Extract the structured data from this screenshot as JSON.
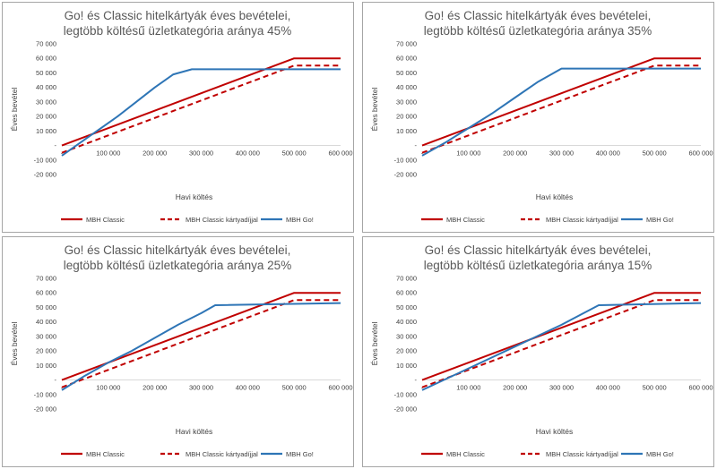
{
  "chart_data": [
    {
      "type": "line",
      "title_line1": "Go! és Classic hitelkártyák éves bevételei,",
      "title_line2": "legtöbb költésű üzletkategória aránya 45%",
      "xlabel": "Havi költés",
      "ylabel": "Éves bevétel",
      "xlim": [
        0,
        600000
      ],
      "ylim": [
        -20000,
        70000
      ],
      "xticks": [
        0,
        100000,
        200000,
        300000,
        400000,
        500000,
        600000
      ],
      "xtick_labels": [
        "-",
        "100 000",
        "200 000",
        "300 000",
        "400 000",
        "500 000",
        "600 000"
      ],
      "yticks": [
        -20000,
        -10000,
        0,
        10000,
        20000,
        30000,
        40000,
        50000,
        60000,
        70000
      ],
      "ytick_labels": [
        "-20 000",
        "-10 000",
        "-",
        "10 000",
        "20 000",
        "30 000",
        "40 000",
        "50 000",
        "60 000",
        "70 000"
      ],
      "legend_position": "bottom",
      "series": [
        {
          "name": "MBH Classic",
          "style": "solid",
          "color": "#c00000",
          "x": [
            0,
            500000,
            600000
          ],
          "y": [
            0,
            60000,
            60000
          ]
        },
        {
          "name": "MBH Classic kártyadíjjal",
          "style": "dashed",
          "color": "#c00000",
          "x": [
            0,
            500000,
            600000
          ],
          "y": [
            -5000,
            55000,
            55000
          ]
        },
        {
          "name": "MBH Go!",
          "style": "solid",
          "color": "#2e75b6",
          "x": [
            0,
            40000,
            80000,
            120000,
            160000,
            200000,
            240000,
            280000,
            600000
          ],
          "y": [
            -7000,
            2000,
            11000,
            20000,
            30000,
            40000,
            49000,
            52500,
            52500
          ]
        }
      ]
    },
    {
      "type": "line",
      "title_line1": "Go! és Classic hitelkártyák éves bevételei,",
      "title_line2": "legtöbb költésű üzletkategória aránya 35%",
      "xlabel": "Havi költés",
      "ylabel": "Éves bevétel",
      "xlim": [
        0,
        600000
      ],
      "ylim": [
        -20000,
        70000
      ],
      "xticks": [
        0,
        100000,
        200000,
        300000,
        400000,
        500000,
        600000
      ],
      "xtick_labels": [
        "-",
        "100 000",
        "200 000",
        "300 000",
        "400 000",
        "500 000",
        "600 000"
      ],
      "yticks": [
        -20000,
        -10000,
        0,
        10000,
        20000,
        30000,
        40000,
        50000,
        60000,
        70000
      ],
      "ytick_labels": [
        "-20 000",
        "-10 000",
        "-",
        "10 000",
        "20 000",
        "30 000",
        "40 000",
        "50 000",
        "60 000",
        "70 000"
      ],
      "legend_position": "bottom",
      "series": [
        {
          "name": "MBH Classic",
          "style": "solid",
          "color": "#c00000",
          "x": [
            0,
            500000,
            600000
          ],
          "y": [
            0,
            60000,
            60000
          ]
        },
        {
          "name": "MBH Classic kártyadíjjal",
          "style": "dashed",
          "color": "#c00000",
          "x": [
            0,
            500000,
            600000
          ],
          "y": [
            -5000,
            55000,
            55000
          ]
        },
        {
          "name": "MBH Go!",
          "style": "solid",
          "color": "#2e75b6",
          "x": [
            0,
            50000,
            100000,
            150000,
            200000,
            250000,
            300000,
            600000
          ],
          "y": [
            -7000,
            2000,
            12000,
            22000,
            33000,
            44000,
            53000,
            53000
          ]
        }
      ]
    },
    {
      "type": "line",
      "title_line1": "Go! és Classic hitelkártyák éves bevételei,",
      "title_line2": "legtöbb költésű üzletkategória aránya 25%",
      "xlabel": "Havi költés",
      "ylabel": "Éves bevétel",
      "xlim": [
        0,
        600000
      ],
      "ylim": [
        -20000,
        70000
      ],
      "xticks": [
        0,
        100000,
        200000,
        300000,
        400000,
        500000,
        600000
      ],
      "xtick_labels": [
        "-",
        "100 000",
        "200 000",
        "300 000",
        "400 000",
        "500 000",
        "600 000"
      ],
      "yticks": [
        -20000,
        -10000,
        0,
        10000,
        20000,
        30000,
        40000,
        50000,
        60000,
        70000
      ],
      "ytick_labels": [
        "-20 000",
        "-10 000",
        "-",
        "10 000",
        "20 000",
        "30 000",
        "40 000",
        "50 000",
        "60 000",
        "70 000"
      ],
      "legend_position": "bottom",
      "series": [
        {
          "name": "MBH Classic",
          "style": "solid",
          "color": "#c00000",
          "x": [
            0,
            500000,
            600000
          ],
          "y": [
            0,
            60000,
            60000
          ]
        },
        {
          "name": "MBH Classic kártyadíjjal",
          "style": "dashed",
          "color": "#c00000",
          "x": [
            0,
            500000,
            600000
          ],
          "y": [
            -5000,
            55000,
            55000
          ]
        },
        {
          "name": "MBH Go!",
          "style": "solid",
          "color": "#2e75b6",
          "x": [
            0,
            50000,
            100000,
            150000,
            200000,
            250000,
            300000,
            330000,
            600000
          ],
          "y": [
            -7000,
            3000,
            12000,
            20000,
            29000,
            38000,
            46000,
            51500,
            53000
          ]
        }
      ]
    },
    {
      "type": "line",
      "title_line1": "Go! és Classic hitelkártyák éves bevételei,",
      "title_line2": "legtöbb költésű üzletkategória aránya 15%",
      "xlabel": "Havi költés",
      "ylabel": "Éves bevétel",
      "xlim": [
        0,
        600000
      ],
      "ylim": [
        -20000,
        70000
      ],
      "xticks": [
        0,
        100000,
        200000,
        300000,
        400000,
        500000,
        600000
      ],
      "xtick_labels": [
        "-",
        "100 000",
        "200 000",
        "300 000",
        "400 000",
        "500 000",
        "600 000"
      ],
      "yticks": [
        -20000,
        -10000,
        0,
        10000,
        20000,
        30000,
        40000,
        50000,
        60000,
        70000
      ],
      "ytick_labels": [
        "-20 000",
        "-10 000",
        "-",
        "10 000",
        "20 000",
        "30 000",
        "40 000",
        "50 000",
        "60 000",
        "70 000"
      ],
      "legend_position": "bottom",
      "series": [
        {
          "name": "MBH Classic",
          "style": "solid",
          "color": "#c00000",
          "x": [
            0,
            500000,
            600000
          ],
          "y": [
            0,
            60000,
            60000
          ]
        },
        {
          "name": "MBH Classic kártyadíjjal",
          "style": "dashed",
          "color": "#c00000",
          "x": [
            0,
            500000,
            600000
          ],
          "y": [
            -5000,
            55000,
            55000
          ]
        },
        {
          "name": "MBH Go!",
          "style": "solid",
          "color": "#2e75b6",
          "x": [
            0,
            100000,
            200000,
            300000,
            380000,
            600000
          ],
          "y": [
            -7000,
            8000,
            23000,
            38000,
            51500,
            53000
          ]
        }
      ]
    }
  ]
}
